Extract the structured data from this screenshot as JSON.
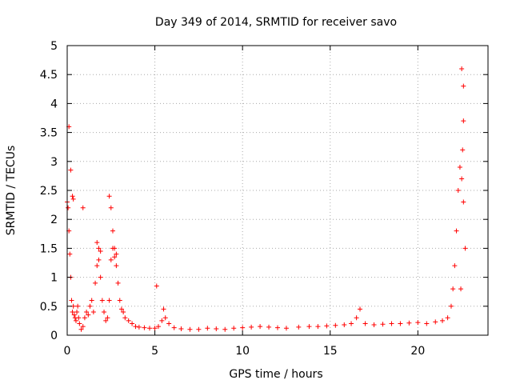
{
  "chart_data": {
    "type": "scatter",
    "title": "Day 349 of 2014, SRMTID for receiver savo",
    "xlabel": "GPS time / hours",
    "ylabel": "SRMTID / TECUs",
    "xlim": [
      0,
      24
    ],
    "ylim": [
      0,
      5
    ],
    "xticks": [
      0,
      5,
      10,
      15,
      20
    ],
    "xtick_labels": [
      "0",
      "5",
      "10",
      "15",
      "20"
    ],
    "yticks": [
      0,
      0.5,
      1,
      1.5,
      2,
      2.5,
      3,
      3.5,
      4,
      4.5,
      5
    ],
    "ytick_labels": [
      "0",
      "0.5",
      "1",
      "1.5",
      "2",
      "2.5",
      "3",
      "3.5",
      "4",
      "4.5",
      "5"
    ],
    "grid": true,
    "marker": "+",
    "color": "#ff0000",
    "series": [
      {
        "name": "savo",
        "x": [
          0.0,
          0.05,
          0.1,
          0.15,
          0.2,
          0.25,
          0.3,
          0.35,
          0.4,
          0.45,
          0.5,
          0.55,
          0.6,
          0.65,
          0.7,
          0.8,
          0.9,
          1.0,
          1.1,
          1.2,
          1.3,
          1.4,
          1.5,
          1.6,
          1.7,
          1.8,
          1.9,
          2.0,
          2.1,
          2.2,
          2.3,
          2.4,
          2.5,
          2.6,
          2.7,
          2.8,
          2.9,
          3.0,
          3.1,
          3.2,
          3.3,
          3.5,
          3.7,
          3.9,
          4.1,
          4.4,
          4.7,
          5.0,
          5.2,
          5.4,
          5.6,
          5.8,
          6.1,
          6.5,
          7.0,
          7.5,
          8.0,
          8.5,
          9.0,
          9.5,
          10.0,
          10.5,
          11.0,
          11.5,
          12.0,
          12.5,
          13.2,
          13.8,
          14.3,
          14.8,
          15.3,
          15.8,
          16.2,
          16.5,
          16.7,
          17.0,
          17.5,
          18.0,
          18.5,
          19.0,
          19.5,
          20.0,
          20.5,
          21.0,
          21.4,
          21.7,
          21.9,
          22.0,
          22.1,
          22.2,
          22.3,
          22.4,
          22.5,
          22.6,
          22.7,
          0.1,
          0.2,
          0.3,
          0.35,
          0.9,
          1.7,
          1.8,
          1.9,
          2.4,
          2.5,
          2.6,
          2.7,
          2.8,
          5.1,
          5.5,
          22.5,
          22.6,
          22.6,
          22.55,
          22.45
        ],
        "y": [
          2.3,
          2.2,
          1.8,
          1.4,
          1.0,
          0.6,
          0.4,
          0.5,
          0.35,
          0.3,
          0.25,
          0.4,
          0.5,
          0.3,
          0.2,
          0.1,
          0.15,
          0.3,
          0.4,
          0.35,
          0.5,
          0.6,
          0.4,
          0.9,
          1.2,
          1.3,
          1.0,
          0.6,
          0.4,
          0.25,
          0.3,
          0.6,
          1.3,
          1.5,
          1.35,
          1.2,
          0.9,
          0.6,
          0.45,
          0.4,
          0.3,
          0.25,
          0.2,
          0.15,
          0.14,
          0.13,
          0.12,
          0.12,
          0.15,
          0.25,
          0.3,
          0.2,
          0.13,
          0.11,
          0.1,
          0.1,
          0.12,
          0.11,
          0.1,
          0.12,
          0.13,
          0.14,
          0.15,
          0.14,
          0.13,
          0.12,
          0.14,
          0.15,
          0.15,
          0.16,
          0.17,
          0.18,
          0.2,
          0.3,
          0.45,
          0.2,
          0.18,
          0.19,
          0.2,
          0.2,
          0.21,
          0.22,
          0.2,
          0.23,
          0.25,
          0.3,
          0.5,
          0.8,
          1.2,
          1.8,
          2.5,
          2.9,
          2.7,
          2.3,
          1.5,
          3.6,
          2.85,
          2.4,
          2.35,
          2.2,
          1.6,
          1.5,
          1.45,
          2.4,
          2.2,
          1.8,
          1.5,
          1.4,
          0.85,
          0.45,
          4.6,
          4.3,
          3.7,
          3.2,
          0.8
        ]
      }
    ]
  }
}
